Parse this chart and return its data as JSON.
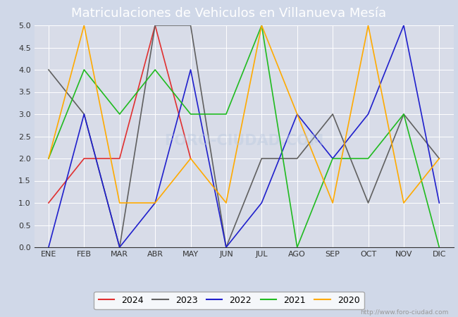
{
  "title": "Matriculaciones de Vehiculos en Villanueva Mesía",
  "months": [
    "ENE",
    "FEB",
    "MAR",
    "ABR",
    "MAY",
    "JUN",
    "JUL",
    "AGO",
    "SEP",
    "OCT",
    "NOV",
    "DIC"
  ],
  "series": {
    "2024": [
      1,
      2,
      2,
      5,
      2,
      null,
      null,
      null,
      null,
      null,
      null,
      null
    ],
    "2023": [
      4,
      3,
      0,
      5,
      5,
      0,
      2,
      2,
      3,
      1,
      3,
      2
    ],
    "2022": [
      0,
      3,
      0,
      1,
      4,
      0,
      1,
      3,
      2,
      3,
      5,
      1
    ],
    "2021": [
      2,
      4,
      3,
      4,
      3,
      3,
      5,
      0,
      2,
      2,
      3,
      0
    ],
    "2020": [
      2,
      5,
      1,
      1,
      2,
      1,
      5,
      3,
      1,
      5,
      1,
      2
    ]
  },
  "colors": {
    "2024": "#e03030",
    "2023": "#606060",
    "2022": "#2020cc",
    "2021": "#20bb20",
    "2020": "#ffaa00"
  },
  "ylim": [
    0,
    5.0
  ],
  "yticks": [
    0.0,
    0.5,
    1.0,
    1.5,
    2.0,
    2.5,
    3.0,
    3.5,
    4.0,
    4.5,
    5.0
  ],
  "fig_bg_color": "#d0d8e8",
  "plot_bg_color": "#d8dce8",
  "title_bg_color": "#5588cc",
  "title_text_color": "#ffffff",
  "watermark": "http://www.foro-ciudad.com",
  "legend_years": [
    "2024",
    "2023",
    "2022",
    "2021",
    "2020"
  ],
  "grid_color": "#ffffff",
  "title_fontsize": 13,
  "tick_fontsize": 8
}
